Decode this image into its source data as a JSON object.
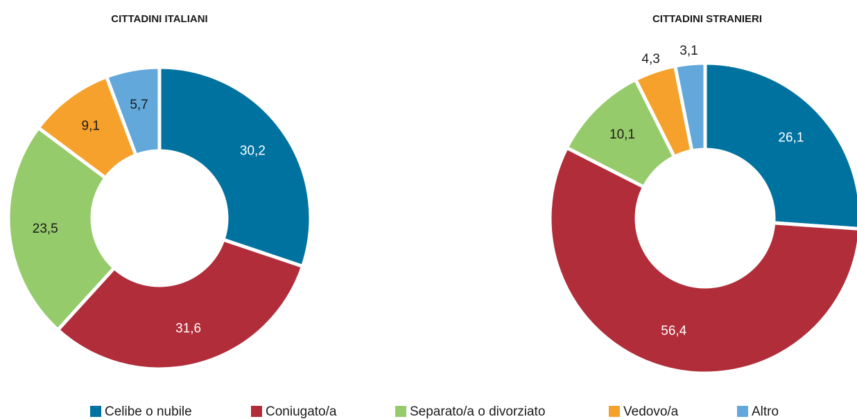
{
  "chart_data": [
    {
      "type": "pie",
      "donut": true,
      "title": "CITTADINI ITALIANI",
      "categories": [
        "Celibe o nubile",
        "Coniugato/a",
        "Separato/a o divorziato",
        "Vedovo/a",
        "Altro"
      ],
      "values": [
        30.2,
        31.6,
        23.5,
        9.1,
        5.7
      ],
      "value_labels": [
        "30,2",
        "31,6",
        "23,5",
        "9,1",
        "5,7"
      ],
      "colors": [
        "#00729f",
        "#b02d39",
        "#96cb6b",
        "#f6a12b",
        "#62a8db"
      ]
    },
    {
      "type": "pie",
      "donut": true,
      "title": "CITTADINI STRANIERI",
      "categories": [
        "Celibe o nubile",
        "Coniugato/a",
        "Separato/a o divorziato",
        "Vedovo/a",
        "Altro"
      ],
      "values": [
        26.1,
        56.4,
        10.1,
        4.3,
        3.1
      ],
      "value_labels": [
        "26,1",
        "56,4",
        "10,1",
        "4,3",
        "3,1"
      ],
      "colors": [
        "#00729f",
        "#b02d39",
        "#96cb6b",
        "#f6a12b",
        "#62a8db"
      ]
    }
  ]
}
